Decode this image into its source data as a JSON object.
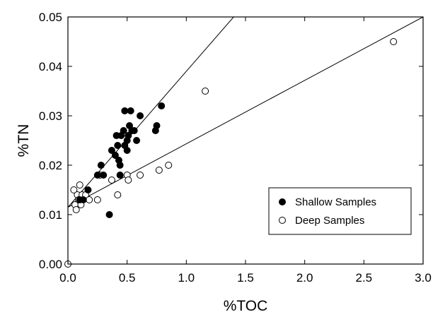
{
  "chart_data": {
    "type": "scatter",
    "xlabel": "%TOC",
    "ylabel": "%TN",
    "xlim": [
      0,
      3.0
    ],
    "ylim": [
      0,
      0.05
    ],
    "x_ticks": [
      0.0,
      0.5,
      1.0,
      1.5,
      2.0,
      2.5,
      3.0
    ],
    "x_tick_labels": [
      "0.0",
      "0.5",
      "1.0",
      "1.5",
      "2.0",
      "2.5",
      "3.0"
    ],
    "y_ticks": [
      0,
      0.01,
      0.02,
      0.03,
      0.04,
      0.05
    ],
    "y_tick_labels": [
      "0.00",
      "0.01",
      "0.02",
      "0.03",
      "0.04",
      "0.05"
    ],
    "grid": false,
    "legend_position": "lower-right",
    "series": [
      {
        "name": "Shallow Samples",
        "marker": "filled-circle",
        "color": "#000000",
        "points": [
          [
            0.1,
            0.013
          ],
          [
            0.13,
            0.013
          ],
          [
            0.17,
            0.015
          ],
          [
            0.25,
            0.018
          ],
          [
            0.28,
            0.02
          ],
          [
            0.3,
            0.018
          ],
          [
            0.35,
            0.01
          ],
          [
            0.37,
            0.023
          ],
          [
            0.4,
            0.022
          ],
          [
            0.41,
            0.026
          ],
          [
            0.42,
            0.024
          ],
          [
            0.43,
            0.021
          ],
          [
            0.44,
            0.02
          ],
          [
            0.44,
            0.018
          ],
          [
            0.45,
            0.026
          ],
          [
            0.47,
            0.027
          ],
          [
            0.48,
            0.024
          ],
          [
            0.48,
            0.031
          ],
          [
            0.5,
            0.023
          ],
          [
            0.5,
            0.025
          ],
          [
            0.51,
            0.026
          ],
          [
            0.52,
            0.028
          ],
          [
            0.53,
            0.031
          ],
          [
            0.54,
            0.027
          ],
          [
            0.56,
            0.027
          ],
          [
            0.58,
            0.025
          ],
          [
            0.61,
            0.03
          ],
          [
            0.74,
            0.027
          ],
          [
            0.75,
            0.028
          ],
          [
            0.79,
            0.032
          ]
        ]
      },
      {
        "name": "Deep Samples",
        "marker": "open-circle",
        "color": "#000000",
        "points": [
          [
            0.0,
            0.0
          ],
          [
            0.05,
            0.015
          ],
          [
            0.06,
            0.012
          ],
          [
            0.07,
            0.011
          ],
          [
            0.08,
            0.014
          ],
          [
            0.09,
            0.013
          ],
          [
            0.1,
            0.016
          ],
          [
            0.11,
            0.012
          ],
          [
            0.12,
            0.014
          ],
          [
            0.15,
            0.014
          ],
          [
            0.18,
            0.013
          ],
          [
            0.25,
            0.013
          ],
          [
            0.27,
            0.018
          ],
          [
            0.37,
            0.017
          ],
          [
            0.42,
            0.014
          ],
          [
            0.5,
            0.018
          ],
          [
            0.51,
            0.017
          ],
          [
            0.61,
            0.018
          ],
          [
            0.77,
            0.019
          ],
          [
            0.85,
            0.02
          ],
          [
            1.16,
            0.035
          ],
          [
            2.75,
            0.045
          ]
        ]
      }
    ],
    "fit_lines": [
      {
        "for": "Shallow Samples",
        "from": [
          0.0,
          0.0115
        ],
        "to": [
          1.4,
          0.05
        ]
      },
      {
        "for": "Deep Samples",
        "from": [
          0.0,
          0.0115
        ],
        "to": [
          3.0,
          0.05
        ]
      }
    ]
  }
}
